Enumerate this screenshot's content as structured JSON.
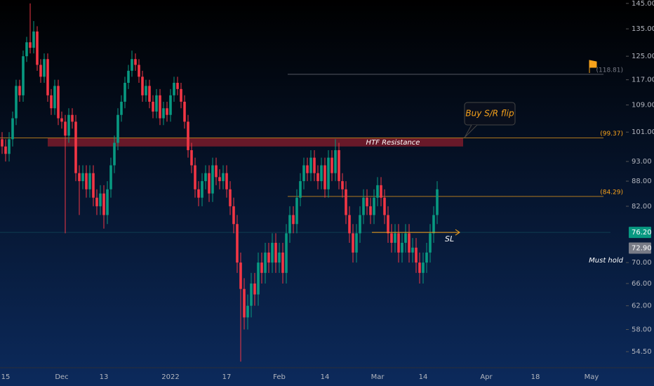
{
  "chart_data": {
    "type": "candlestick",
    "categories": [
      null,
      "15",
      null,
      null,
      null,
      null,
      null,
      null,
      null,
      null,
      null,
      null,
      null,
      null,
      null,
      null,
      null,
      "Dec",
      null,
      null,
      null,
      null,
      null,
      null,
      null,
      null,
      null,
      null,
      null,
      "13",
      null,
      null,
      null,
      null,
      null,
      null,
      null,
      null,
      null,
      null,
      null,
      null,
      null,
      null,
      null,
      null,
      null,
      null,
      "2022",
      null,
      null,
      null,
      null,
      null,
      null,
      null,
      null,
      null,
      null,
      null,
      null,
      null,
      null,
      null,
      "17",
      null,
      null,
      null,
      null,
      null,
      null,
      null,
      null,
      null,
      null,
      null,
      null,
      null,
      null,
      "Feb",
      null,
      null,
      null,
      null,
      null,
      null,
      null,
      null,
      null,
      null,
      null,
      null,
      "14",
      null,
      null,
      null,
      null,
      null,
      null,
      null,
      null,
      null,
      null,
      null,
      null,
      null,
      null,
      "Mar",
      null,
      null,
      null,
      null,
      null,
      null,
      null,
      null,
      null,
      null,
      null,
      null,
      "14",
      null,
      null,
      null,
      null,
      null,
      null,
      null,
      null,
      null,
      null,
      null,
      null,
      null,
      null,
      null,
      null,
      null,
      "Apr",
      null,
      null,
      null,
      null,
      null,
      null,
      null,
      null,
      null,
      null,
      null,
      null,
      null,
      "18",
      null,
      null,
      null,
      null,
      null,
      null,
      null,
      null,
      null,
      null,
      null,
      null,
      null,
      null,
      null,
      "May",
      null,
      null,
      null
    ],
    "open": [
      99,
      97,
      95,
      99,
      105,
      115,
      112,
      125,
      130,
      128,
      134,
      122,
      118,
      124,
      112,
      108,
      115,
      105,
      104,
      100,
      106,
      104,
      90,
      88,
      90,
      86,
      90,
      84,
      82,
      85,
      80,
      86,
      92,
      98,
      106,
      110,
      116,
      120,
      124,
      122,
      118,
      112,
      115,
      110,
      107,
      112,
      105,
      108,
      106,
      112,
      116,
      114,
      110,
      104,
      96,
      92,
      86,
      84,
      88,
      90,
      85,
      92,
      89,
      88,
      90,
      86,
      82,
      78,
      70,
      65,
      60,
      62,
      66,
      64,
      70,
      68,
      72,
      70,
      74,
      70,
      72,
      68,
      76,
      80,
      78,
      84,
      88,
      92,
      90,
      94,
      90,
      88,
      92,
      86,
      94,
      90,
      96,
      88,
      86,
      80,
      76,
      72,
      76,
      80,
      84,
      82,
      80,
      84,
      87,
      84,
      80,
      76,
      74,
      76,
      72,
      74,
      76,
      72,
      73,
      70,
      68,
      70,
      72,
      76,
      80,
      null,
      null,
      null,
      null,
      null,
      null,
      null,
      null,
      null,
      null,
      null,
      null,
      null,
      null,
      null,
      null,
      null,
      null,
      null,
      null,
      null,
      null,
      null,
      null,
      null,
      null,
      null,
      null,
      null,
      null,
      null,
      null,
      null,
      null,
      null,
      null,
      null,
      null,
      null,
      null,
      null,
      null,
      null,
      null,
      null,
      null,
      null
    ],
    "high": [
      101,
      99,
      101,
      107,
      117,
      117,
      127,
      132,
      145,
      138,
      136,
      124,
      126,
      126,
      114,
      117,
      117,
      107,
      106,
      108,
      108,
      106,
      92,
      92,
      92,
      92,
      92,
      86,
      87,
      87,
      88,
      94,
      100,
      108,
      112,
      118,
      122,
      127,
      126,
      124,
      120,
      117,
      117,
      112,
      114,
      114,
      110,
      110,
      114,
      118,
      118,
      116,
      112,
      106,
      98,
      94,
      88,
      90,
      92,
      92,
      94,
      94,
      91,
      92,
      92,
      88,
      84,
      80,
      72,
      67,
      64,
      68,
      68,
      72,
      72,
      74,
      74,
      76,
      76,
      74,
      74,
      78,
      82,
      82,
      86,
      90,
      94,
      94,
      96,
      96,
      92,
      94,
      94,
      96,
      96,
      99,
      98,
      90,
      88,
      82,
      78,
      78,
      82,
      86,
      86,
      84,
      86,
      89,
      89,
      86,
      82,
      78,
      78,
      78,
      76,
      78,
      78,
      75,
      75,
      72,
      72,
      74,
      78,
      82,
      88,
      null,
      null,
      null,
      null,
      null,
      null,
      null,
      null,
      null,
      null,
      null,
      null,
      null,
      null,
      null,
      null,
      null,
      null,
      null,
      null,
      null,
      null,
      null,
      null,
      null,
      null,
      null,
      null,
      null,
      null,
      null,
      null,
      null,
      null,
      null,
      null,
      null,
      null,
      null,
      null,
      null,
      null,
      null,
      null,
      null,
      null,
      null
    ],
    "low": [
      95,
      93,
      93,
      97,
      103,
      110,
      110,
      123,
      126,
      126,
      120,
      116,
      116,
      110,
      106,
      106,
      103,
      102,
      76,
      98,
      102,
      88,
      80,
      86,
      84,
      84,
      82,
      80,
      80,
      77,
      78,
      84,
      90,
      96,
      104,
      108,
      114,
      118,
      120,
      116,
      110,
      110,
      108,
      105,
      105,
      103,
      103,
      104,
      104,
      110,
      112,
      108,
      102,
      94,
      90,
      84,
      82,
      82,
      86,
      83,
      83,
      87,
      86,
      86,
      84,
      80,
      76,
      68,
      53,
      58,
      58,
      60,
      62,
      62,
      66,
      66,
      68,
      68,
      68,
      68,
      66,
      66,
      74,
      76,
      76,
      82,
      86,
      88,
      88,
      88,
      86,
      86,
      84,
      84,
      88,
      88,
      86,
      84,
      78,
      74,
      70,
      70,
      74,
      78,
      80,
      78,
      78,
      82,
      82,
      78,
      74,
      72,
      72,
      70,
      70,
      72,
      70,
      70,
      68,
      66,
      66,
      68,
      70,
      74,
      78,
      null,
      null,
      null,
      null,
      null,
      null,
      null,
      null,
      null,
      null,
      null,
      null,
      null,
      null,
      null,
      null,
      null,
      null,
      null,
      null,
      null,
      null,
      null,
      null,
      null,
      null,
      null,
      null,
      null,
      null,
      null,
      null,
      null,
      null,
      null,
      null,
      null,
      null,
      null,
      null,
      null,
      null,
      null,
      null,
      null,
      null,
      null
    ],
    "close": [
      97,
      95,
      99,
      105,
      115,
      112,
      125,
      130,
      128,
      134,
      122,
      118,
      124,
      112,
      108,
      115,
      105,
      104,
      100,
      106,
      104,
      90,
      88,
      90,
      86,
      90,
      84,
      82,
      85,
      80,
      86,
      92,
      98,
      106,
      110,
      116,
      120,
      124,
      122,
      118,
      112,
      115,
      110,
      107,
      112,
      105,
      108,
      106,
      112,
      116,
      114,
      110,
      104,
      96,
      92,
      86,
      84,
      88,
      90,
      85,
      92,
      89,
      88,
      90,
      86,
      82,
      78,
      70,
      65,
      60,
      62,
      66,
      64,
      70,
      68,
      72,
      70,
      74,
      70,
      72,
      68,
      76,
      80,
      78,
      84,
      88,
      92,
      90,
      94,
      90,
      88,
      92,
      86,
      94,
      90,
      96,
      88,
      86,
      80,
      76,
      72,
      76,
      80,
      84,
      82,
      80,
      84,
      87,
      84,
      80,
      76,
      74,
      76,
      72,
      74,
      76,
      72,
      73,
      70,
      68,
      70,
      72,
      76,
      80,
      86,
      null,
      null,
      null,
      null,
      null,
      null,
      null,
      null,
      null,
      null,
      null,
      null,
      null,
      null,
      null,
      null,
      null,
      null,
      null,
      null,
      null,
      null,
      null,
      null,
      null,
      null,
      null,
      null,
      null,
      null,
      null,
      null,
      null,
      null,
      null,
      null,
      null,
      null,
      null,
      null,
      null,
      null,
      null,
      null,
      null,
      null,
      null
    ],
    "up_color": "#089981",
    "down_color": "#f23645",
    "log_scale": true,
    "ylim": [
      52.5,
      146.4
    ],
    "yticks": [
      {
        "value": 145,
        "label": "145.00"
      },
      {
        "value": 135,
        "label": "135.00"
      },
      {
        "value": 125,
        "label": "125.00"
      },
      {
        "value": 117,
        "label": "117.00"
      },
      {
        "value": 109,
        "label": "109.00"
      },
      {
        "value": 101,
        "label": "101.00"
      },
      {
        "value": 93,
        "label": "93.00"
      },
      {
        "value": 88,
        "label": "88.00"
      },
      {
        "value": 82,
        "label": "82.00"
      },
      {
        "value": 70,
        "label": "70.00"
      },
      {
        "value": 66,
        "label": "66.00"
      },
      {
        "value": 62,
        "label": "62.00"
      },
      {
        "value": 58,
        "label": "58.00"
      },
      {
        "value": 54.5,
        "label": "54.50"
      }
    ],
    "hlines": [
      {
        "value": 118.81,
        "label": "(118.81)",
        "color": "#787b86"
      },
      {
        "value": 99.37,
        "label": "(99.37)",
        "color": "#f7a21b"
      },
      {
        "value": 84.29,
        "label": "(84.29)",
        "color": "#f7a21b"
      }
    ],
    "zone": {
      "label": "HTF Resistance",
      "range": [
        97,
        99.3
      ],
      "color": "#7a1b2a"
    },
    "callout": {
      "text": "Buy S/R flip",
      "color": "#f7a21b"
    },
    "arrow": {
      "value": 76.2,
      "label": "SL",
      "color": "#f7a21b"
    },
    "note": {
      "text": "Must hold",
      "value": 70.4
    },
    "price_labels": [
      {
        "value": 76.2,
        "label": "76.20",
        "color": "#089981"
      },
      {
        "value": 72.9,
        "label": "72.90",
        "color": "#787b86"
      }
    ]
  }
}
